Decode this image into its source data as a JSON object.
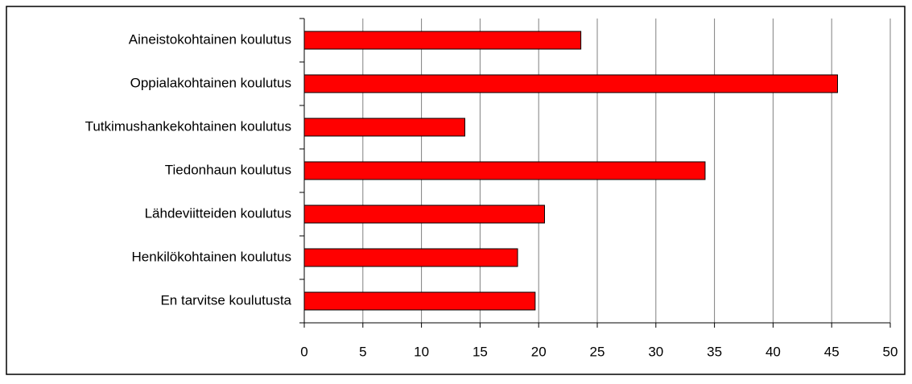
{
  "chart_data": {
    "type": "bar",
    "orientation": "horizontal",
    "categories": [
      "Aineistokohtainen koulutus",
      "Oppialakohtainen koulutus",
      "Tutkimushankekohtainen koulutus",
      "Tiedonhaun koulutus",
      "Lähdeviitteiden koulutus",
      "Henkilökohtainen koulutus",
      "En tarvitse koulutusta"
    ],
    "values": [
      23.6,
      45.5,
      13.7,
      34.2,
      20.5,
      18.2,
      19.7
    ],
    "color": "#ff0000",
    "xlim": [
      0,
      50
    ],
    "xticks": [
      0,
      5,
      10,
      15,
      20,
      25,
      30,
      35,
      40,
      45,
      50
    ],
    "grid": true
  }
}
